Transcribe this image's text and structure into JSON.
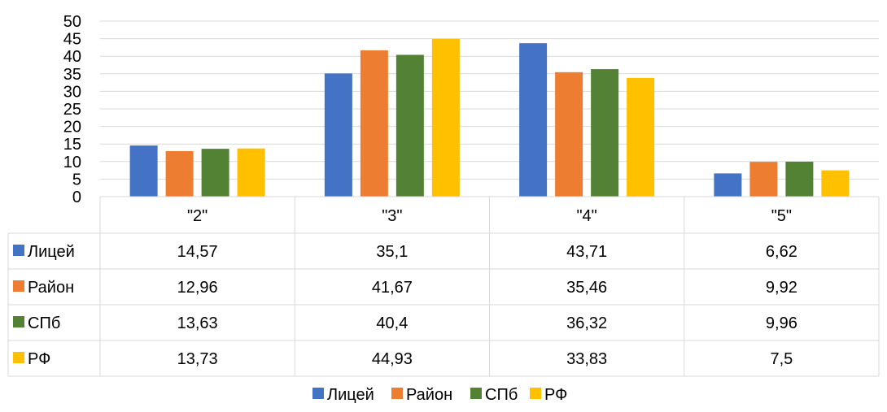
{
  "chart_data": {
    "type": "bar",
    "categories": [
      "\"2\"",
      "\"3\"",
      "\"4\"",
      "\"5\""
    ],
    "series": [
      {
        "name": "Лицей",
        "color": "#4472C4",
        "values": [
          14.57,
          35.1,
          43.71,
          6.62
        ],
        "labels": [
          "14,57",
          "35,1",
          "43,71",
          "6,62"
        ]
      },
      {
        "name": "Район",
        "color": "#ED7D31",
        "values": [
          12.96,
          41.67,
          35.46,
          9.92
        ],
        "labels": [
          "12,96",
          "41,67",
          "35,46",
          "9,92"
        ]
      },
      {
        "name": "СПб",
        "color": "#548235",
        "values": [
          13.63,
          40.4,
          36.32,
          9.96
        ],
        "labels": [
          "13,63",
          "40,4",
          "36,32",
          "9,96"
        ]
      },
      {
        "name": "РФ",
        "color": "#FFC000",
        "values": [
          13.73,
          44.93,
          33.83,
          7.5
        ],
        "labels": [
          "13,73",
          "44,93",
          "33,83",
          "7,5"
        ]
      }
    ],
    "yticks": [
      0,
      5,
      10,
      15,
      20,
      25,
      30,
      35,
      40,
      45,
      50
    ],
    "ylim": [
      0,
      50
    ],
    "grid": true,
    "data_table": true,
    "legend": "bottom"
  }
}
